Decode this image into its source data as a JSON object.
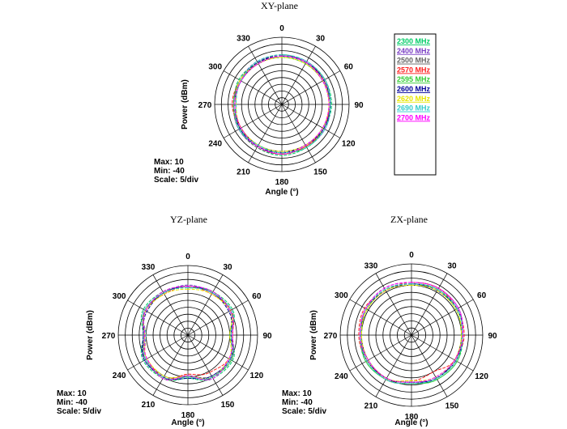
{
  "chart_data": [
    {
      "type": "polar-line",
      "title": "XY-plane",
      "ylabel": "Power (dBm)",
      "xlabel": "Angle (°)",
      "info": [
        "Max: 10",
        "Min: -40",
        "Scale: 5/div"
      ],
      "range": [
        -40,
        10
      ],
      "angle_ticks": [
        "0",
        "330",
        "300",
        "270",
        "240",
        "210",
        "180",
        "150",
        "120",
        "90",
        "60",
        "30"
      ],
      "angles_deg": [
        0,
        30,
        60,
        90,
        120,
        150,
        180,
        210,
        240,
        270,
        300,
        330
      ],
      "series": [
        {
          "name": "2300 MHz",
          "color": "#00cc66",
          "values": [
            -3,
            -4,
            -3,
            -5,
            -4,
            -3,
            -2,
            -3,
            -4,
            -3,
            -3,
            -4
          ]
        },
        {
          "name": "2400 MHz",
          "color": "#7b3fc4",
          "values": [
            -4,
            -3,
            -4,
            -4,
            -3,
            -4,
            -3,
            -4,
            -3,
            -4,
            -4,
            -3
          ]
        },
        {
          "name": "2500 MHz",
          "color": "#666666",
          "values": [
            -3,
            -4,
            -5,
            -4,
            -3,
            -3,
            -3,
            -4,
            -5,
            -4,
            -3,
            -4
          ]
        },
        {
          "name": "2570 MHz",
          "color": "#ff2020",
          "values": [
            -4,
            -5,
            -4,
            -3,
            -5,
            -4,
            -3,
            -4,
            -4,
            -5,
            -4,
            -4
          ]
        },
        {
          "name": "2595 MHz",
          "color": "#33cc33",
          "values": [
            -5,
            -4,
            -4,
            -4,
            -4,
            -5,
            -4,
            -3,
            -4,
            -4,
            -5,
            -5
          ]
        },
        {
          "name": "2600 MHz",
          "color": "#000099",
          "values": [
            -4,
            -4,
            -5,
            -5,
            -4,
            -4,
            -4,
            -5,
            -4,
            -4,
            -4,
            -4
          ]
        },
        {
          "name": "2620 MHz",
          "color": "#e6e600",
          "values": [
            -5,
            -5,
            -4,
            -6,
            -5,
            -5,
            -5,
            -5,
            -5,
            -5,
            -5,
            -5
          ]
        },
        {
          "name": "2690 MHz",
          "color": "#33cccc",
          "values": [
            -3,
            -3,
            -5,
            -6,
            -3,
            -5,
            -4,
            -3,
            -3,
            -4,
            -3,
            -3
          ]
        },
        {
          "name": "2700 MHz",
          "color": "#ff00ff",
          "values": [
            -4,
            -5,
            -5,
            -5,
            -5,
            -4,
            -3,
            -5,
            -5,
            -5,
            -5,
            -4
          ]
        }
      ]
    },
    {
      "type": "polar-line",
      "title": "YZ-plane",
      "ylabel": "Power (dBm)",
      "xlabel": "Angle (°)",
      "info": [
        "Max: 10",
        "Min: -40",
        "Scale: 5/div"
      ],
      "range": [
        -40,
        10
      ],
      "angle_ticks": [
        "0",
        "330",
        "300",
        "270",
        "240",
        "210",
        "180",
        "150",
        "120",
        "90",
        "60",
        "30"
      ],
      "angles_deg": [
        0,
        30,
        60,
        90,
        120,
        150,
        180,
        210,
        240,
        270,
        300,
        330
      ],
      "series": [
        {
          "name": "2300 MHz",
          "color": "#00cc66",
          "values": [
            -5,
            -4,
            -3,
            -8,
            -3,
            -4,
            -9,
            -4,
            -3,
            -9,
            -3,
            -4
          ]
        },
        {
          "name": "2400 MHz",
          "color": "#7b3fc4",
          "values": [
            -4,
            -5,
            -4,
            -9,
            -4,
            -5,
            -10,
            -5,
            -4,
            -8,
            -4,
            -5
          ]
        },
        {
          "name": "2500 MHz",
          "color": "#666666",
          "values": [
            -6,
            -5,
            -5,
            -8,
            -5,
            -6,
            -11,
            -6,
            -5,
            -9,
            -5,
            -5
          ]
        },
        {
          "name": "2570 MHz",
          "color": "#ff2020",
          "values": [
            -5,
            -6,
            -4,
            -10,
            -6,
            -5,
            -12,
            -9,
            -6,
            -8,
            -4,
            -6
          ]
        },
        {
          "name": "2595 MHz",
          "color": "#33cc33",
          "values": [
            -6,
            -4,
            -5,
            -9,
            -5,
            -4,
            -10,
            -5,
            -4,
            -10,
            -5,
            -4
          ]
        },
        {
          "name": "2600 MHz",
          "color": "#000099",
          "values": [
            -5,
            -5,
            -6,
            -8,
            -4,
            -5,
            -9,
            -6,
            -5,
            -9,
            -6,
            -5
          ]
        },
        {
          "name": "2620 MHz",
          "color": "#e6e600",
          "values": [
            -7,
            -6,
            -5,
            -9,
            -6,
            -6,
            -11,
            -5,
            -6,
            -10,
            -5,
            -6
          ]
        },
        {
          "name": "2690 MHz",
          "color": "#33cccc",
          "values": [
            -6,
            -5,
            -4,
            -10,
            -5,
            -5,
            -10,
            -5,
            -5,
            -9,
            -4,
            -5
          ]
        },
        {
          "name": "2700 MHz",
          "color": "#ff00ff",
          "values": [
            -5,
            -4,
            -5,
            -9,
            -6,
            -4,
            -11,
            -4,
            -6,
            -8,
            -5,
            -4
          ]
        }
      ]
    },
    {
      "type": "polar-line",
      "title": "ZX-plane",
      "ylabel": "Power (dBm)",
      "xlabel": "Angle (°)",
      "info": [
        "Max: 10",
        "Min: -40",
        "Scale: 5/div"
      ],
      "range": [
        -40,
        10
      ],
      "angle_ticks": [
        "0",
        "330",
        "300",
        "270",
        "240",
        "210",
        "180",
        "150",
        "120",
        "90",
        "60",
        "30"
      ],
      "angles_deg": [
        0,
        30,
        60,
        90,
        120,
        150,
        180,
        210,
        240,
        270,
        300,
        330
      ],
      "series": [
        {
          "name": "2300 MHz",
          "color": "#00cc66",
          "values": [
            -4,
            -3,
            -3,
            -4,
            -3,
            -4,
            -6,
            -4,
            -3,
            -4,
            -3,
            -3
          ]
        },
        {
          "name": "2400 MHz",
          "color": "#7b3fc4",
          "values": [
            -3,
            -2,
            -3,
            -5,
            -4,
            -5,
            -7,
            -5,
            -4,
            -5,
            -2,
            -2
          ]
        },
        {
          "name": "2500 MHz",
          "color": "#666666",
          "values": [
            -4,
            -3,
            -4,
            -4,
            -5,
            -4,
            -6,
            -5,
            -4,
            -4,
            -3,
            -3
          ]
        },
        {
          "name": "2570 MHz",
          "color": "#ff2020",
          "values": [
            -3,
            -4,
            -2,
            -3,
            -4,
            -5,
            -8,
            -10,
            -5,
            -3,
            -3,
            -2
          ]
        },
        {
          "name": "2595 MHz",
          "color": "#33cc33",
          "values": [
            -5,
            -3,
            -4,
            -5,
            -3,
            -4,
            -6,
            -4,
            -3,
            -5,
            -4,
            -3
          ]
        },
        {
          "name": "2600 MHz",
          "color": "#000099",
          "values": [
            -4,
            -4,
            -3,
            -4,
            -4,
            -5,
            -7,
            -5,
            -4,
            -4,
            -3,
            -4
          ]
        },
        {
          "name": "2620 MHz",
          "color": "#e6e600",
          "values": [
            -5,
            -4,
            -4,
            -5,
            -5,
            -5,
            -8,
            -6,
            -5,
            -5,
            -4,
            -4
          ]
        },
        {
          "name": "2690 MHz",
          "color": "#33cccc",
          "values": [
            -4,
            -3,
            -3,
            -4,
            -4,
            -4,
            -6,
            -5,
            -4,
            -4,
            -3,
            -3
          ]
        },
        {
          "name": "2700 MHz",
          "color": "#ff00ff",
          "values": [
            -3,
            -2,
            -3,
            -4,
            -5,
            -5,
            -7,
            -6,
            -5,
            -4,
            -2,
            -2
          ]
        }
      ]
    }
  ],
  "legend": {
    "entries": [
      "2300 MHz",
      "2400 MHz",
      "2500 MHz",
      "2570 MHz",
      "2595 MHz",
      "2600 MHz",
      "2620 MHz",
      "2690 MHz",
      "2700 MHz"
    ],
    "colors": [
      "#00cc66",
      "#7b3fc4",
      "#666666",
      "#ff2020",
      "#33cc33",
      "#000099",
      "#e6e600",
      "#33cccc",
      "#ff00ff"
    ]
  }
}
